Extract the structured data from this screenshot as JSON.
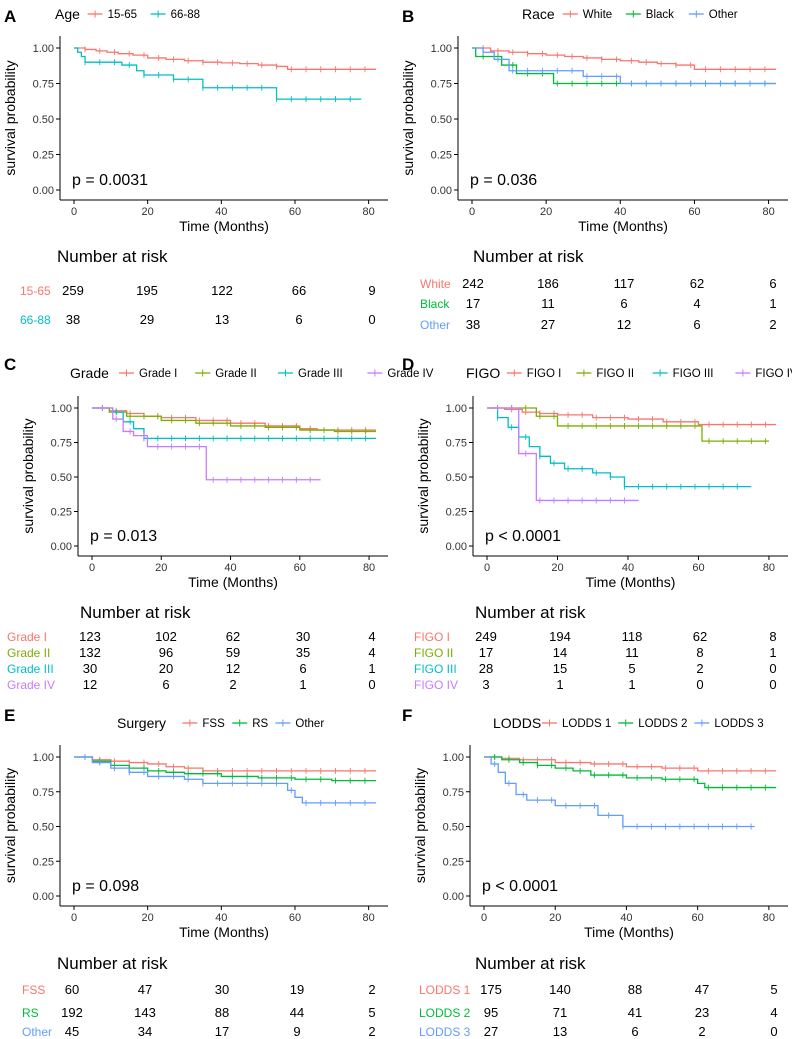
{
  "chart_data": [
    {
      "type": "line",
      "panel": "A",
      "legend_title": "Age",
      "xlabel": "Time (Months)",
      "ylabel": "survival probability",
      "xlim": [
        0,
        82
      ],
      "ylim": [
        0,
        1
      ],
      "xticks": [
        0,
        20,
        40,
        60,
        80
      ],
      "yticks": [
        "0.00",
        "0.25",
        "0.50",
        "0.75",
        "1.00"
      ],
      "pvalue": "p = 0.0031",
      "risk_title": "Number at risk",
      "risk_times": [
        0,
        20,
        40,
        60,
        80
      ],
      "series": [
        {
          "name": "15-65",
          "color": "#F8766D",
          "x": [
            0,
            3,
            6,
            9,
            12,
            16,
            20,
            25,
            30,
            35,
            40,
            45,
            50,
            55,
            58,
            62,
            70,
            82
          ],
          "y": [
            1.0,
            0.99,
            0.98,
            0.97,
            0.96,
            0.95,
            0.93,
            0.92,
            0.91,
            0.9,
            0.895,
            0.89,
            0.88,
            0.87,
            0.85,
            0.85,
            0.85,
            0.85
          ],
          "risk": [
            259,
            195,
            122,
            66,
            9
          ]
        },
        {
          "name": "66-88",
          "color": "#00BFC4",
          "x": [
            0,
            1,
            2,
            3,
            13,
            17,
            19,
            20,
            27,
            35,
            55,
            78
          ],
          "y": [
            1.0,
            0.97,
            0.94,
            0.9,
            0.88,
            0.84,
            0.81,
            0.81,
            0.78,
            0.72,
            0.64,
            0.64
          ],
          "risk": [
            38,
            29,
            13,
            6,
            0
          ]
        }
      ]
    },
    {
      "type": "line",
      "panel": "B",
      "legend_title": "Race",
      "xlabel": "Time (Months)",
      "ylabel": "survival probability",
      "xlim": [
        0,
        82
      ],
      "ylim": [
        0,
        1
      ],
      "xticks": [
        0,
        20,
        40,
        60,
        80
      ],
      "yticks": [
        "0.00",
        "0.25",
        "0.50",
        "0.75",
        "1.00"
      ],
      "pvalue": "p = 0.036",
      "risk_title": "Number at risk",
      "risk_times": [
        0,
        20,
        40,
        60,
        80
      ],
      "series": [
        {
          "name": "White",
          "color": "#F8766D",
          "x": [
            0,
            5,
            10,
            15,
            20,
            25,
            30,
            35,
            40,
            45,
            50,
            55,
            60,
            65,
            82
          ],
          "y": [
            1.0,
            0.98,
            0.97,
            0.96,
            0.95,
            0.94,
            0.93,
            0.92,
            0.91,
            0.9,
            0.89,
            0.88,
            0.85,
            0.85,
            0.85
          ],
          "risk": [
            242,
            186,
            117,
            62,
            6
          ]
        },
        {
          "name": "Black",
          "color": "#00BA38",
          "x": [
            0,
            1,
            8,
            12,
            20,
            22,
            82
          ],
          "y": [
            1.0,
            0.94,
            0.88,
            0.82,
            0.82,
            0.75,
            0.75
          ],
          "risk": [
            17,
            11,
            6,
            4,
            1
          ]
        },
        {
          "name": "Other",
          "color": "#619CFF",
          "x": [
            0,
            3,
            6,
            10,
            20,
            30,
            40,
            82
          ],
          "y": [
            1.0,
            0.97,
            0.92,
            0.84,
            0.84,
            0.8,
            0.75,
            0.75
          ],
          "risk": [
            38,
            27,
            12,
            6,
            2
          ]
        }
      ]
    },
    {
      "type": "line",
      "panel": "C",
      "legend_title": "Grade",
      "xlabel": "Time (Months)",
      "ylabel": "survival probability",
      "xlim": [
        0,
        82
      ],
      "ylim": [
        0,
        1
      ],
      "xticks": [
        0,
        20,
        40,
        60,
        80
      ],
      "yticks": [
        "0.00",
        "0.25",
        "0.50",
        "0.75",
        "1.00"
      ],
      "pvalue": "p = 0.013",
      "risk_title": "Number at risk",
      "risk_times": [
        0,
        20,
        40,
        60,
        80
      ],
      "series": [
        {
          "name": "Grade I",
          "color": "#F8766D",
          "x": [
            0,
            5,
            10,
            15,
            20,
            30,
            40,
            50,
            60,
            65,
            82
          ],
          "y": [
            1.0,
            0.98,
            0.96,
            0.94,
            0.93,
            0.91,
            0.89,
            0.87,
            0.85,
            0.84,
            0.84
          ],
          "risk": [
            123,
            102,
            62,
            30,
            4
          ]
        },
        {
          "name": "Grade II",
          "color": "#7CAE00",
          "x": [
            0,
            5,
            10,
            20,
            30,
            40,
            50,
            60,
            70,
            82
          ],
          "y": [
            1.0,
            0.97,
            0.94,
            0.91,
            0.89,
            0.87,
            0.86,
            0.84,
            0.83,
            0.83
          ],
          "risk": [
            132,
            96,
            59,
            35,
            4
          ]
        },
        {
          "name": "Grade III",
          "color": "#00BFC4",
          "x": [
            0,
            6,
            9,
            12,
            15,
            82
          ],
          "y": [
            1.0,
            0.97,
            0.9,
            0.85,
            0.78,
            0.78
          ],
          "risk": [
            30,
            20,
            12,
            6,
            1
          ]
        },
        {
          "name": "Grade IV",
          "color": "#C77CFF",
          "x": [
            0,
            6,
            9,
            12,
            16,
            33,
            66
          ],
          "y": [
            1.0,
            0.92,
            0.83,
            0.8,
            0.72,
            0.48,
            0.48
          ],
          "risk": [
            12,
            6,
            2,
            1,
            0
          ]
        }
      ]
    },
    {
      "type": "line",
      "panel": "D",
      "legend_title": "FIGO",
      "xlabel": "Time (Months)",
      "ylabel": "survival probability",
      "xlim": [
        0,
        82
      ],
      "ylim": [
        0,
        1
      ],
      "xticks": [
        0,
        20,
        40,
        60,
        80
      ],
      "yticks": [
        "0.00",
        "0.25",
        "0.50",
        "0.75",
        "1.00"
      ],
      "pvalue": "p < 0.0001",
      "risk_title": "Number at risk",
      "risk_times": [
        0,
        20,
        40,
        60,
        80
      ],
      "series": [
        {
          "name": "FIGO I",
          "color": "#F8766D",
          "x": [
            0,
            5,
            10,
            15,
            20,
            30,
            40,
            50,
            60,
            82
          ],
          "y": [
            1.0,
            0.99,
            0.97,
            0.96,
            0.95,
            0.93,
            0.92,
            0.9,
            0.88,
            0.88
          ],
          "risk": [
            249,
            194,
            118,
            62,
            8
          ]
        },
        {
          "name": "FIGO II",
          "color": "#7CAE00",
          "x": [
            0,
            14,
            20,
            61,
            80
          ],
          "y": [
            1.0,
            0.94,
            0.87,
            0.76,
            0.76
          ],
          "risk": [
            17,
            14,
            11,
            8,
            1
          ]
        },
        {
          "name": "FIGO III",
          "color": "#00BFC4",
          "x": [
            0,
            3,
            6,
            9,
            12,
            15,
            18,
            22,
            30,
            35,
            39,
            75
          ],
          "y": [
            1.0,
            0.93,
            0.86,
            0.79,
            0.72,
            0.65,
            0.6,
            0.56,
            0.53,
            0.5,
            0.43,
            0.43
          ],
          "risk": [
            28,
            15,
            5,
            2,
            0
          ]
        },
        {
          "name": "FIGO IV",
          "color": "#C77CFF",
          "x": [
            0,
            9,
            14,
            43
          ],
          "y": [
            1.0,
            0.67,
            0.33,
            0.33
          ],
          "risk": [
            3,
            1,
            1,
            0,
            0
          ]
        }
      ]
    },
    {
      "type": "line",
      "panel": "E",
      "legend_title": "Surgery",
      "xlabel": "Time (Months)",
      "ylabel": "survival probability",
      "xlim": [
        0,
        82
      ],
      "ylim": [
        0,
        1
      ],
      "xticks": [
        0,
        20,
        40,
        60,
        80
      ],
      "yticks": [
        "0.00",
        "0.25",
        "0.50",
        "0.75",
        "1.00"
      ],
      "pvalue": "p = 0.098",
      "risk_title": "Number at risk",
      "risk_times": [
        0,
        20,
        40,
        60,
        80
      ],
      "series": [
        {
          "name": "FSS",
          "color": "#F8766D",
          "x": [
            0,
            5,
            10,
            15,
            20,
            25,
            30,
            35,
            82
          ],
          "y": [
            1.0,
            0.98,
            0.97,
            0.96,
            0.95,
            0.93,
            0.92,
            0.9,
            0.9
          ],
          "risk": [
            60,
            47,
            30,
            19,
            2
          ]
        },
        {
          "name": "RS",
          "color": "#00BA38",
          "x": [
            0,
            5,
            10,
            15,
            20,
            25,
            30,
            40,
            50,
            60,
            70,
            82
          ],
          "y": [
            1.0,
            0.97,
            0.94,
            0.92,
            0.9,
            0.89,
            0.88,
            0.86,
            0.85,
            0.84,
            0.83,
            0.83
          ],
          "risk": [
            192,
            143,
            88,
            44,
            5
          ]
        },
        {
          "name": "Other",
          "color": "#619CFF",
          "x": [
            0,
            5,
            10,
            15,
            20,
            30,
            35,
            58,
            60,
            62,
            82
          ],
          "y": [
            1.0,
            0.96,
            0.92,
            0.89,
            0.86,
            0.84,
            0.81,
            0.76,
            0.71,
            0.67,
            0.67
          ],
          "risk": [
            45,
            34,
            17,
            9,
            2
          ]
        }
      ]
    },
    {
      "type": "line",
      "panel": "F",
      "legend_title": "LODDS",
      "xlabel": "Time (Months)",
      "ylabel": "survival probability",
      "xlim": [
        0,
        82
      ],
      "ylim": [
        0,
        1
      ],
      "xticks": [
        0,
        20,
        40,
        60,
        80
      ],
      "yticks": [
        "0.00",
        "0.25",
        "0.50",
        "0.75",
        "1.00"
      ],
      "pvalue": "p < 0.0001",
      "risk_title": "Number at risk",
      "risk_times": [
        0,
        20,
        40,
        60,
        80
      ],
      "series": [
        {
          "name": "LODDS 1",
          "color": "#F8766D",
          "x": [
            0,
            5,
            10,
            20,
            30,
            40,
            50,
            60,
            82
          ],
          "y": [
            1.0,
            0.99,
            0.98,
            0.96,
            0.95,
            0.93,
            0.92,
            0.9,
            0.9
          ],
          "risk": [
            175,
            140,
            88,
            47,
            5
          ]
        },
        {
          "name": "LODDS 2",
          "color": "#00BA38",
          "x": [
            0,
            5,
            10,
            15,
            20,
            25,
            30,
            40,
            50,
            60,
            62,
            82
          ],
          "y": [
            1.0,
            0.98,
            0.96,
            0.94,
            0.92,
            0.9,
            0.87,
            0.85,
            0.84,
            0.81,
            0.78,
            0.78
          ],
          "risk": [
            95,
            71,
            41,
            23,
            4
          ]
        },
        {
          "name": "LODDS 3",
          "color": "#619CFF",
          "x": [
            0,
            2,
            4,
            6,
            9,
            12,
            20,
            32,
            39,
            76
          ],
          "y": [
            1.0,
            0.95,
            0.89,
            0.81,
            0.73,
            0.69,
            0.65,
            0.58,
            0.5,
            0.5
          ],
          "risk": [
            27,
            13,
            6,
            2,
            0
          ]
        }
      ]
    }
  ]
}
